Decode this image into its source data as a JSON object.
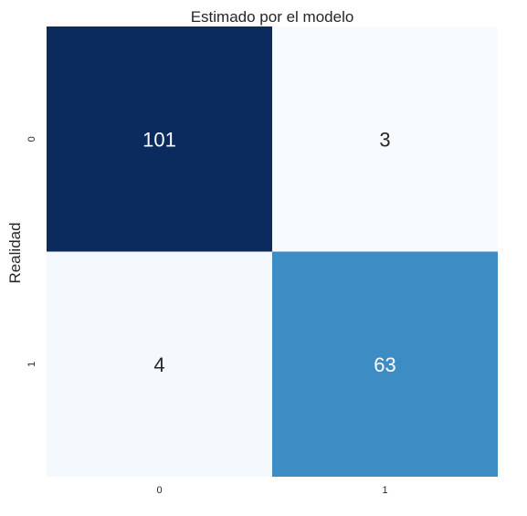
{
  "chart_data": {
    "type": "heatmap",
    "title": "Estimado por el modelo",
    "xlabel": "",
    "ylabel": "Realidad",
    "x_categories": [
      "0",
      "1"
    ],
    "y_categories": [
      "0",
      "1"
    ],
    "values": [
      [
        101,
        3
      ],
      [
        4,
        63
      ]
    ],
    "colormap": "Blues",
    "color_low": "#f7fbff",
    "color_mid": "#3b8bc2",
    "color_high": "#0b2a5e",
    "text_light": "#ffffff",
    "text_dark": "#262626",
    "colorbar": false,
    "grid": false,
    "legend": "none"
  }
}
